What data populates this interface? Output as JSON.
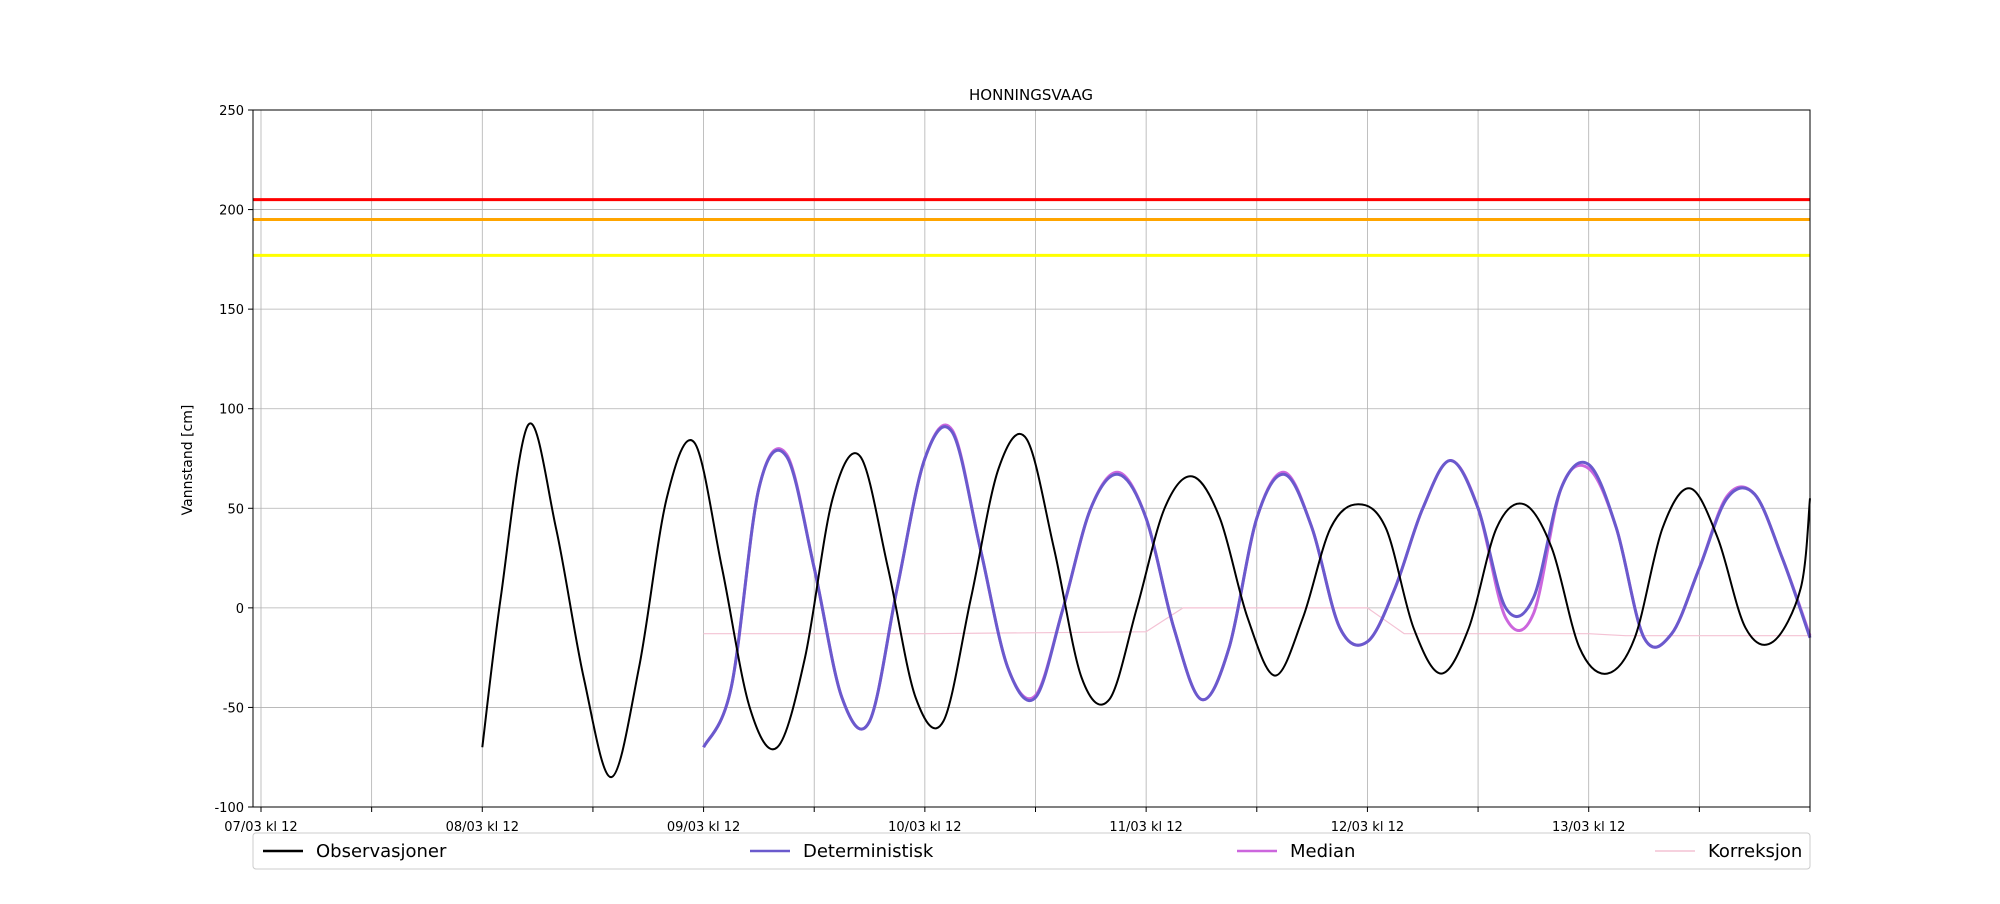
{
  "chart_data": {
    "type": "line",
    "title": "HONNINGSVAAG",
    "xlabel": "",
    "ylabel": "Vannstand [cm]",
    "ylim": [
      -100,
      250
    ],
    "yticks": [
      -100,
      -50,
      0,
      50,
      100,
      150,
      200,
      250
    ],
    "xlim_hours": [
      0,
      168
    ],
    "x_start": "07/03 kl 12",
    "xtick_labels": [
      "07/03 kl 12",
      "08/03 kl 12",
      "09/03 kl 12",
      "10/03 kl 12",
      "11/03 kl 12",
      "12/03 kl 12",
      "13/03 kl 12"
    ],
    "grid": true,
    "legend_position": "bottom",
    "threshold_lines": [
      {
        "value": 205,
        "color": "#ff0000"
      },
      {
        "value": 195,
        "color": "#ffa500"
      },
      {
        "value": 177,
        "color": "#ffff00"
      }
    ],
    "series": [
      {
        "name": "Observasjoner",
        "color": "#000000",
        "x": [
          24,
          26,
          29,
          32,
          35,
          38,
          41,
          44,
          47,
          50,
          53,
          56,
          59,
          62,
          65,
          68,
          71,
          74,
          77,
          80,
          83,
          86,
          89,
          92,
          95,
          98,
          101,
          104,
          107,
          110,
          113,
          116,
          119,
          122,
          125,
          128,
          131,
          134,
          137,
          140,
          143,
          146,
          149,
          152,
          155,
          158,
          161,
          164,
          167,
          168
        ],
        "y": [
          -70,
          5,
          92,
          40,
          -35,
          -85,
          -30,
          55,
          83,
          20,
          -50,
          -70,
          -25,
          55,
          76,
          20,
          -45,
          -57,
          5,
          70,
          85,
          30,
          -35,
          -46,
          0,
          50,
          66,
          45,
          -5,
          -34,
          -5,
          40,
          52,
          40,
          -10,
          -33,
          -10,
          40,
          52,
          30,
          -20,
          -33,
          -15,
          40,
          60,
          35,
          -10,
          -17,
          10,
          55
        ]
      },
      {
        "name": "Deterministisk",
        "color": "#6a5acd",
        "x": [
          48,
          51,
          54,
          57,
          60,
          63,
          66,
          69,
          72,
          75,
          78,
          81,
          84,
          87,
          90,
          93,
          96,
          99,
          102,
          105,
          108,
          111,
          114,
          117,
          120,
          123,
          126,
          129,
          132,
          135,
          138,
          141,
          144,
          147,
          150,
          153,
          156,
          159,
          162,
          165,
          168
        ],
        "y": [
          -70,
          -40,
          60,
          76,
          20,
          -45,
          -57,
          10,
          75,
          88,
          30,
          -30,
          -45,
          0,
          50,
          67,
          45,
          -10,
          -46,
          -20,
          45,
          67,
          40,
          -10,
          -17,
          10,
          50,
          74,
          50,
          0,
          5,
          60,
          72,
          40,
          -15,
          -13,
          20,
          55,
          57,
          25,
          -15
        ]
      },
      {
        "name": "Median",
        "color": "#cc66dd",
        "x": [
          48,
          51,
          54,
          57,
          60,
          63,
          66,
          69,
          72,
          75,
          78,
          81,
          84,
          87,
          90,
          93,
          96,
          99,
          102,
          105,
          108,
          111,
          114,
          117,
          120,
          123,
          126,
          129,
          132,
          135,
          138,
          141,
          144,
          147,
          150,
          153,
          156,
          159,
          162,
          165,
          168
        ],
        "y": [
          -70,
          -40,
          60,
          77,
          20,
          -45,
          -57,
          10,
          75,
          89,
          30,
          -30,
          -44,
          0,
          50,
          68,
          45,
          -10,
          -46,
          -20,
          45,
          68,
          40,
          -10,
          -17,
          10,
          50,
          74,
          50,
          -5,
          -3,
          60,
          70,
          40,
          -15,
          -13,
          20,
          56,
          57,
          25,
          -14
        ]
      },
      {
        "name": "Korreksjon",
        "color": "#f4c2d4",
        "x": [
          48,
          72,
          96,
          100,
          120,
          124,
          144,
          148,
          168
        ],
        "y": [
          -13,
          -13,
          -12,
          0,
          0,
          -13,
          -13,
          -14,
          -14
        ]
      }
    ]
  }
}
